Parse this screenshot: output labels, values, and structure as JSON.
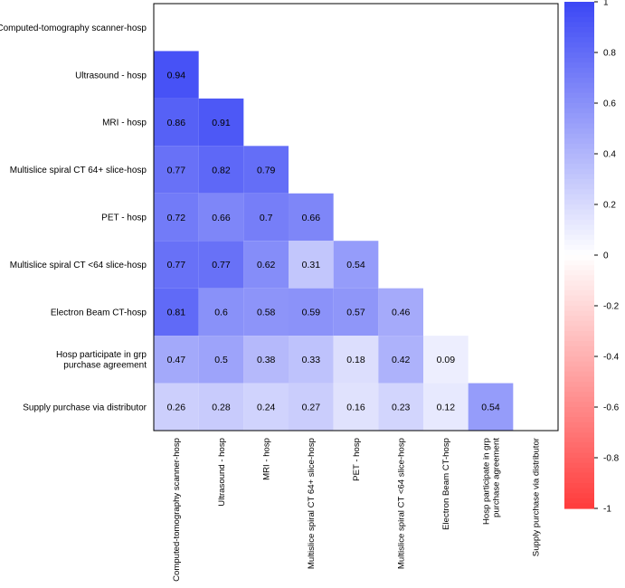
{
  "chart_data": {
    "type": "heatmap",
    "title": "",
    "variables": [
      "Computed-tomography scanner-hosp",
      "Ultrasound - hosp",
      "MRI - hosp",
      "Multislice spiral CT 64+ slice-hosp",
      "PET - hosp",
      "Multislice spiral CT <64 slice-hosp",
      "Electron Beam CT-hosp",
      "Hosp participate in grp purchase agreement",
      "Supply purchase via distributor"
    ],
    "y_labels": [
      [
        "Computed-tomography scanner-hosp"
      ],
      [
        "Ultrasound - hosp"
      ],
      [
        "MRI - hosp"
      ],
      [
        "Multislice spiral CT 64+ slice-hosp"
      ],
      [
        "PET - hosp"
      ],
      [
        "Multislice spiral CT <64 slice-hosp"
      ],
      [
        "Electron Beam CT-hosp"
      ],
      [
        "Hosp participate in grp",
        "purchase agreement"
      ],
      [
        "Supply purchase via distributor"
      ]
    ],
    "x_labels": [
      [
        "Computed-tomography scanner-hosp"
      ],
      [
        "Ultrasound - hosp"
      ],
      [
        "MRI - hosp"
      ],
      [
        "Multislice spiral CT 64+ slice-hosp"
      ],
      [
        "PET - hosp"
      ],
      [
        "Multislice spiral CT <64 slice-hosp"
      ],
      [
        "Electron Beam CT-hosp"
      ],
      [
        "Hosp participate in grp",
        "purchase agreement"
      ],
      [
        "Supply purchase via distributor"
      ]
    ],
    "lower_triangle": [
      [],
      [
        0.94
      ],
      [
        0.86,
        0.91
      ],
      [
        0.77,
        0.82,
        0.79
      ],
      [
        0.72,
        0.66,
        0.7,
        0.66
      ],
      [
        0.77,
        0.77,
        0.62,
        0.31,
        0.54
      ],
      [
        0.81,
        0.6,
        0.58,
        0.59,
        0.57,
        0.46
      ],
      [
        0.47,
        0.5,
        0.38,
        0.33,
        0.18,
        0.42,
        0.09
      ],
      [
        0.26,
        0.28,
        0.24,
        0.27,
        0.16,
        0.23,
        0.12,
        0.54
      ]
    ],
    "colorbar": {
      "range": [
        -1,
        1
      ],
      "ticks": [
        "1",
        "0.8",
        "0.6",
        "0.4",
        "0.2",
        "0",
        "-0.2",
        "-0.4",
        "-0.6",
        "-0.8",
        "-1"
      ],
      "high_color": "#3b47f5",
      "mid_color": "#ffffff",
      "low_color": "#ff3b3b"
    }
  }
}
